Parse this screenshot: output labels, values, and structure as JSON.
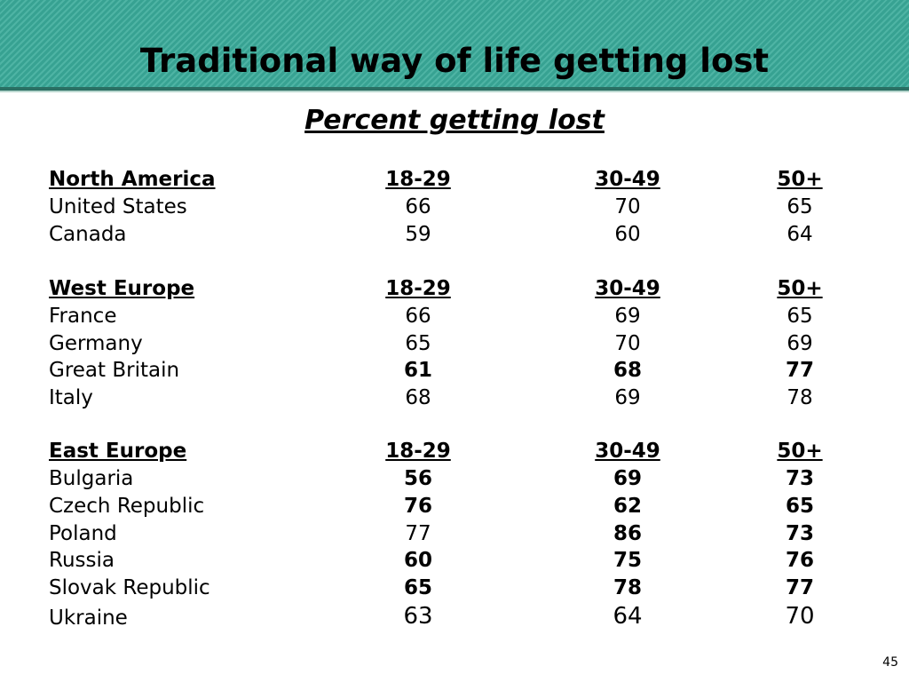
{
  "title": "Traditional way of life getting lost",
  "subtitle": "Percent getting lost",
  "page_number": "45",
  "sections": [
    {
      "region": "North America",
      "headers": [
        "18-29",
        "30-49",
        "50+"
      ],
      "rows": [
        {
          "country": "United States",
          "values": [
            "66",
            "70",
            "65"
          ],
          "bold": [
            false,
            false,
            false
          ]
        },
        {
          "country": "Canada",
          "values": [
            "59",
            "60",
            "64"
          ],
          "bold": [
            false,
            false,
            false
          ]
        }
      ]
    },
    {
      "region": "West Europe",
      "headers": [
        "18-29",
        "30-49",
        "50+"
      ],
      "rows": [
        {
          "country": "France",
          "values": [
            "66",
            "69",
            "65"
          ],
          "bold": [
            false,
            false,
            false
          ]
        },
        {
          "country": "Germany",
          "values": [
            "65",
            "70",
            "69"
          ],
          "bold": [
            false,
            false,
            false
          ]
        },
        {
          "country": "Great Britain",
          "values": [
            "61",
            "68",
            "77"
          ],
          "bold": [
            true,
            true,
            true
          ]
        },
        {
          "country": "Italy",
          "values": [
            "68",
            "69",
            "78"
          ],
          "bold": [
            false,
            false,
            false
          ]
        }
      ]
    },
    {
      "region": "East Europe",
      "headers": [
        "18-29",
        "30-49",
        "50+"
      ],
      "rows": [
        {
          "country": "Bulgaria",
          "values": [
            "56",
            "69",
            "73"
          ],
          "bold": [
            true,
            true,
            true
          ]
        },
        {
          "country": "Czech Republic",
          "values": [
            "76",
            "62",
            "65"
          ],
          "bold": [
            true,
            true,
            true
          ]
        },
        {
          "country": "Poland",
          "values": [
            "77",
            "86",
            "73"
          ],
          "bold": [
            false,
            true,
            true
          ]
        },
        {
          "country": "Russia",
          "values": [
            "60",
            "75",
            "76"
          ],
          "bold": [
            true,
            true,
            true
          ]
        },
        {
          "country": "Slovak Republic",
          "values": [
            "65",
            "78",
            "77"
          ],
          "bold": [
            true,
            true,
            true
          ]
        },
        {
          "country": "Ukraine",
          "values": [
            "63",
            "64",
            "70"
          ],
          "bold": [
            false,
            false,
            false
          ]
        }
      ]
    }
  ],
  "colors": {
    "banner": "#3aab9a",
    "banner_rule": "#2a6f63"
  }
}
